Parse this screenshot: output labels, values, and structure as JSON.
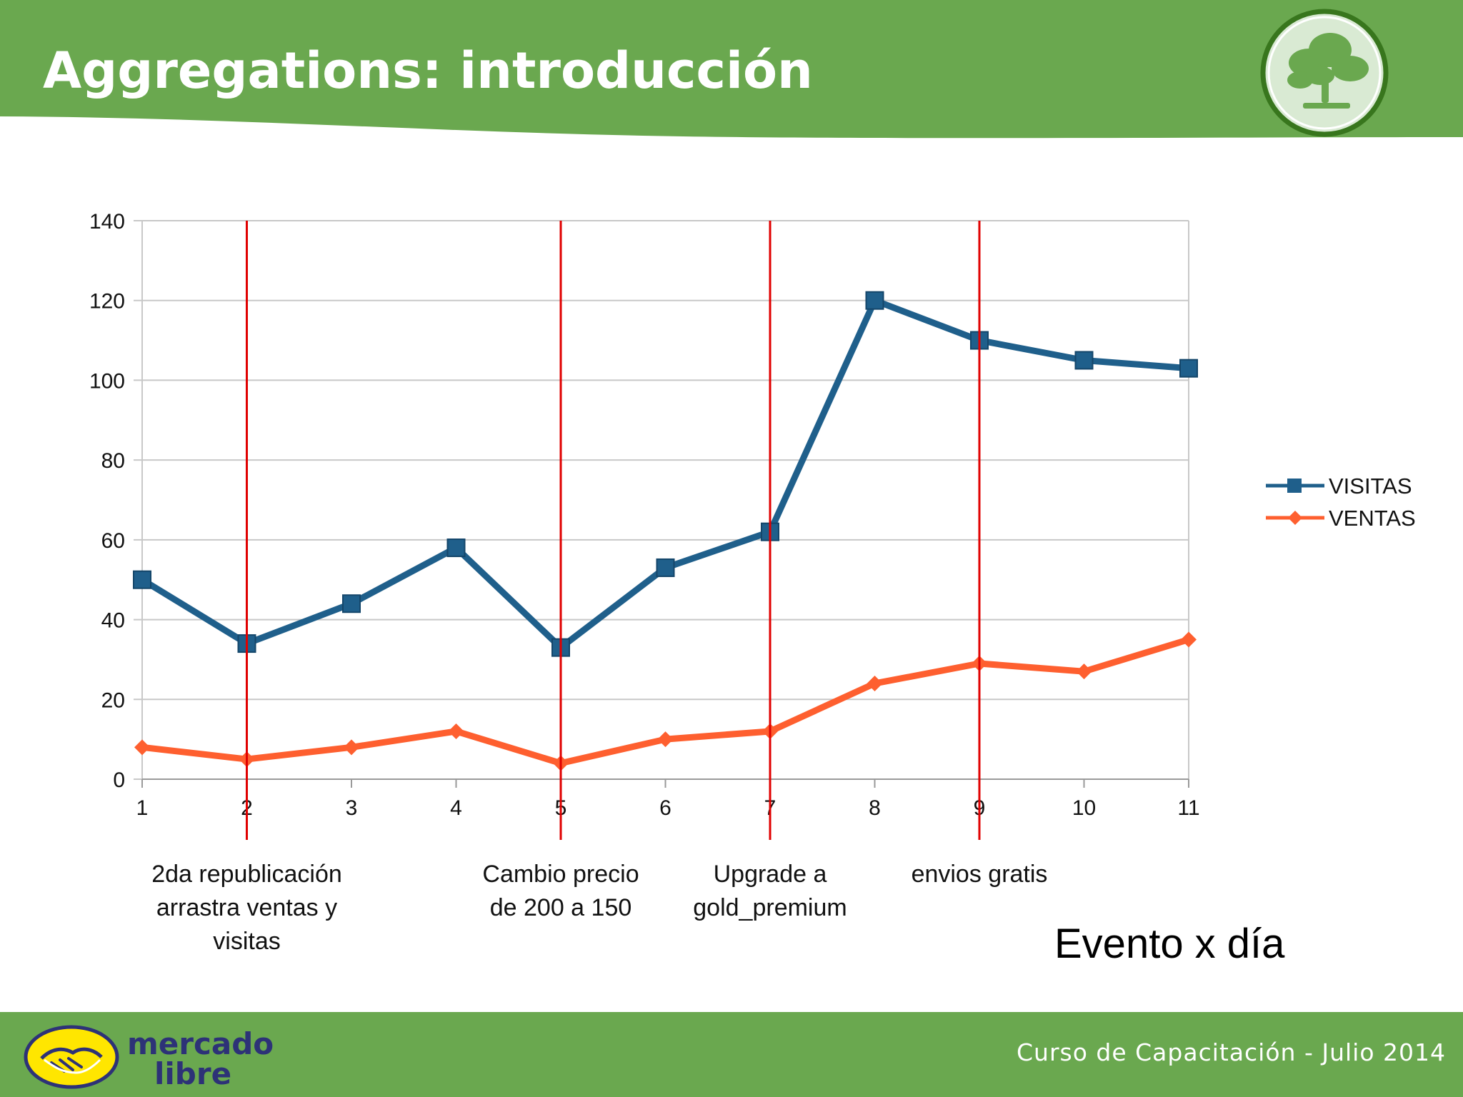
{
  "slide": {
    "title": "Aggregations: introducción",
    "subtitle": "Evento x día",
    "footer_text": "Curso de Capacitación - Julio 2014",
    "brand_logo": {
      "line1": "mercado",
      "line2": "libre"
    }
  },
  "colors": {
    "header_green": "#6aa84f",
    "badge_fill": "#d9ead3",
    "badge_ring": "#38761d",
    "visitas": "#1f5f8b",
    "ventas": "#fe5f2f",
    "event_line": "#e00000",
    "grid": "#c8c8c8"
  },
  "chart_data": {
    "type": "line",
    "x": [
      1,
      2,
      3,
      4,
      5,
      6,
      7,
      8,
      9,
      10,
      11
    ],
    "ylim": [
      0,
      140
    ],
    "yticks": [
      0,
      20,
      40,
      60,
      80,
      100,
      120,
      140
    ],
    "grid": true,
    "legend_position": "right",
    "series": [
      {
        "name": "VISITAS",
        "values": [
          50,
          34,
          44,
          58,
          33,
          53,
          62,
          120,
          110,
          105,
          103
        ],
        "marker": "square"
      },
      {
        "name": "VENTAS",
        "values": [
          8,
          5,
          8,
          12,
          4,
          10,
          12,
          24,
          29,
          27,
          35
        ],
        "marker": "diamond"
      }
    ],
    "events": [
      {
        "x": 2,
        "lines": [
          "2da republicación",
          "arrastra ventas y",
          "visitas"
        ]
      },
      {
        "x": 5,
        "lines": [
          "Cambio precio",
          "de 200 a 150"
        ]
      },
      {
        "x": 7,
        "lines": [
          "Upgrade a",
          "gold_premium"
        ]
      },
      {
        "x": 9,
        "lines": [
          "envios gratis"
        ]
      }
    ]
  }
}
